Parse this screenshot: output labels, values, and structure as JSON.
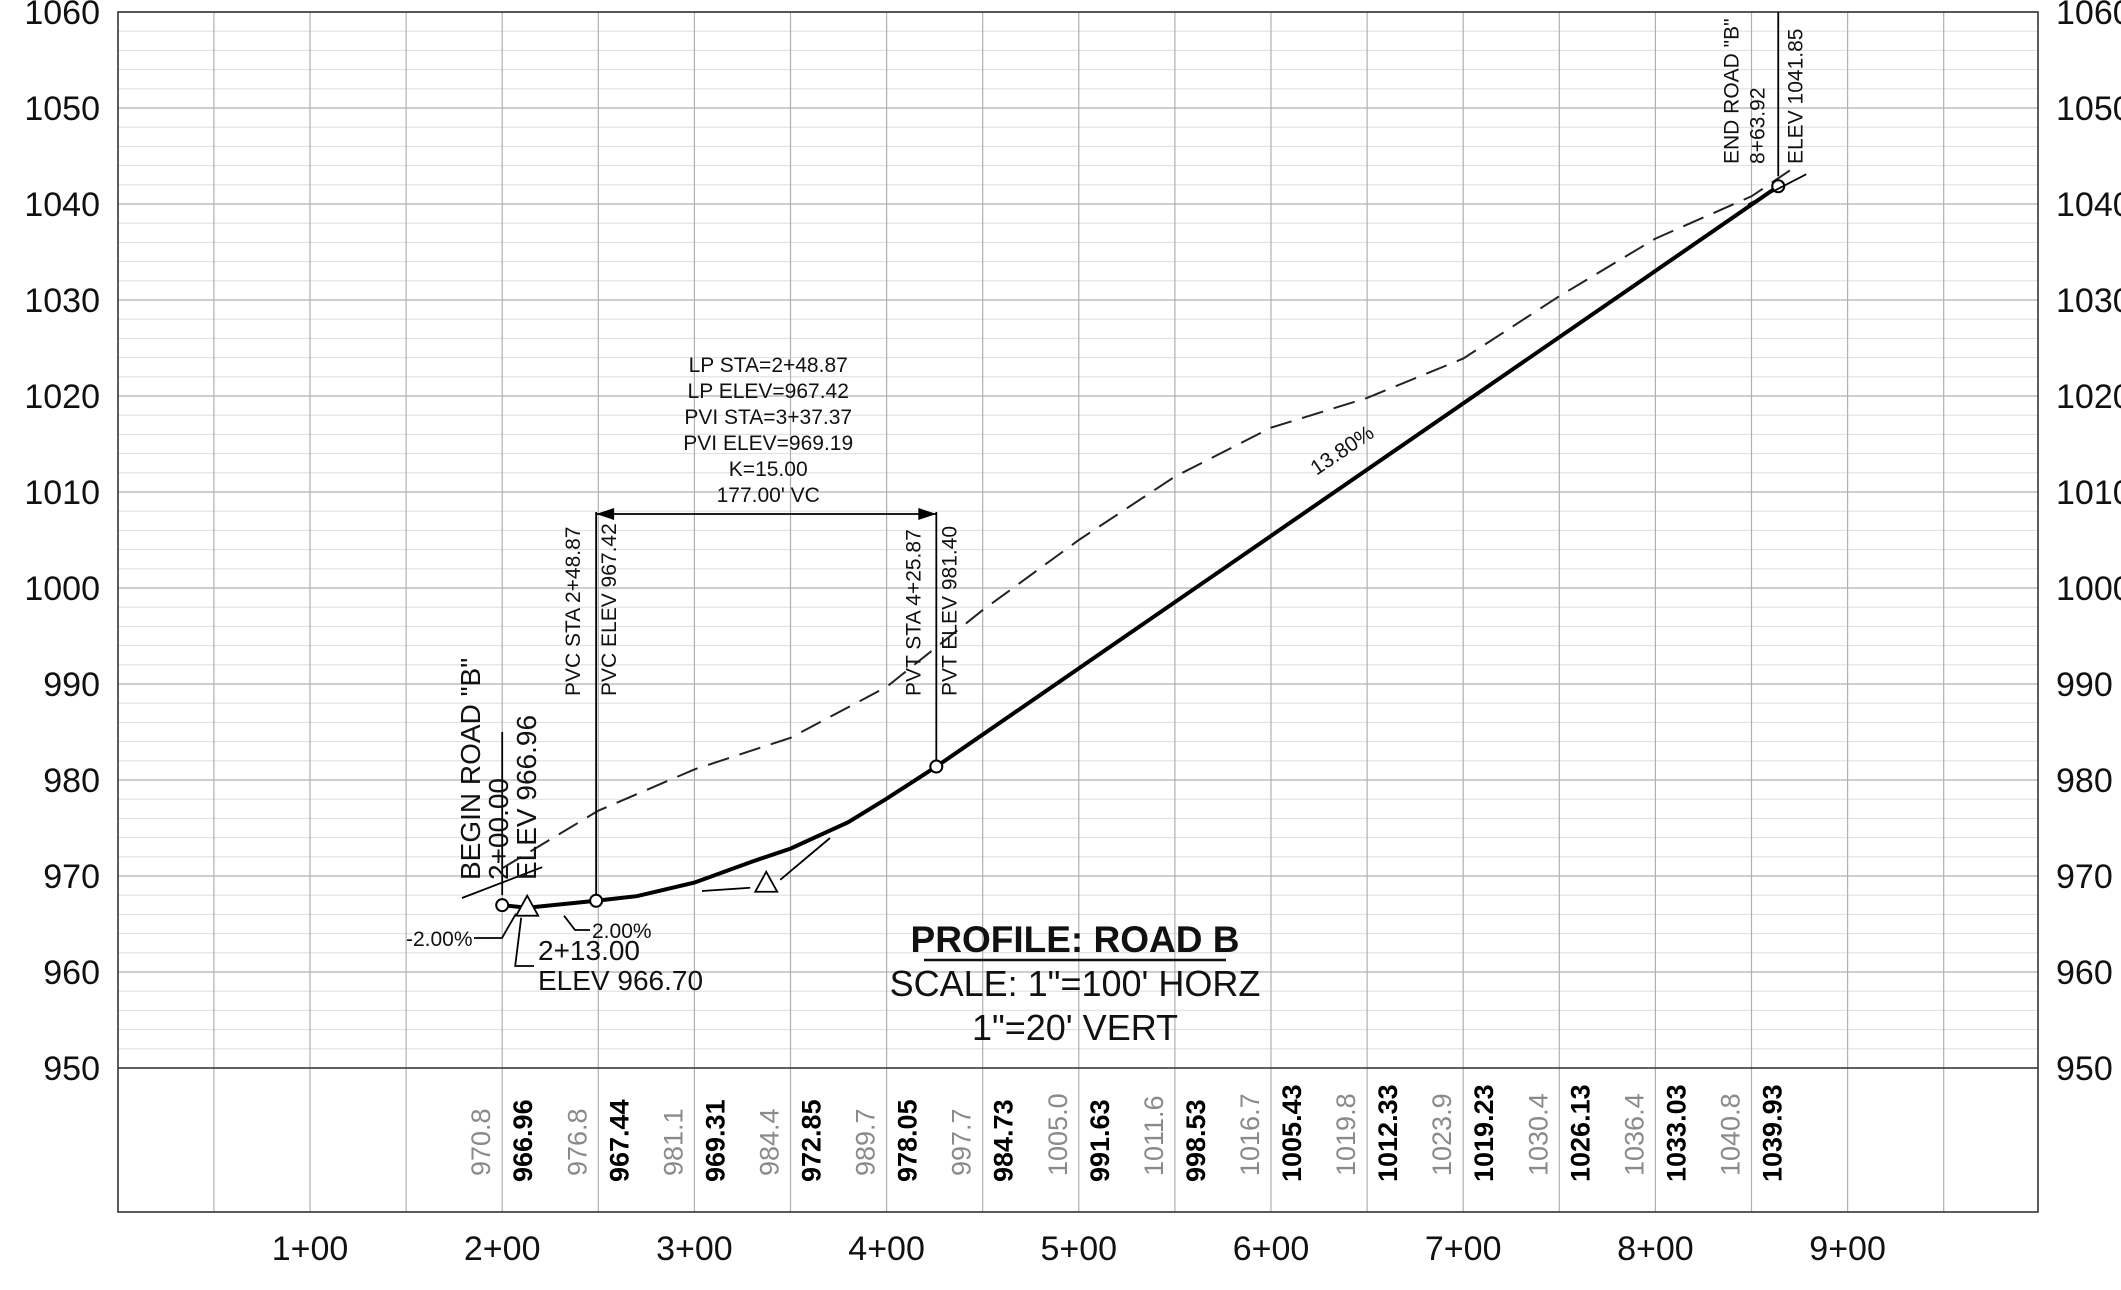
{
  "chart_data": {
    "type": "line",
    "title": "PROFILE: ROAD B",
    "scale": {
      "horizontal": "SCALE: 1\"=100' HORZ",
      "vertical": "1\"=20' VERT"
    },
    "y_ticks": [
      "1060",
      "1050",
      "1040",
      "1030",
      "1020",
      "1010",
      "1000",
      "990",
      "980",
      "970",
      "960",
      "950"
    ],
    "x_ticks": [
      "1+00",
      "2+00",
      "3+00",
      "4+00",
      "5+00",
      "6+00",
      "7+00",
      "8+00",
      "9+00"
    ],
    "ylim": [
      950,
      1060
    ],
    "xlim": [
      0,
      1000
    ],
    "series": [
      {
        "kind": "existing-ground",
        "points": [
          {
            "sta": 200,
            "elev": 970.8
          },
          {
            "sta": 250,
            "elev": 976.8
          },
          {
            "sta": 300,
            "elev": 981.1
          },
          {
            "sta": 350,
            "elev": 984.4
          },
          {
            "sta": 400,
            "elev": 989.7
          },
          {
            "sta": 450,
            "elev": 997.7
          },
          {
            "sta": 500,
            "elev": 1005.0
          },
          {
            "sta": 550,
            "elev": 1011.6
          },
          {
            "sta": 600,
            "elev": 1016.7
          },
          {
            "sta": 650,
            "elev": 1019.8
          },
          {
            "sta": 700,
            "elev": 1023.9
          },
          {
            "sta": 750,
            "elev": 1030.4
          },
          {
            "sta": 800,
            "elev": 1036.4
          },
          {
            "sta": 850,
            "elev": 1040.8
          },
          {
            "sta": 870,
            "elev": 1043.5
          }
        ]
      },
      {
        "kind": "proposed-profile",
        "points": [
          {
            "sta": 200,
            "elev": 966.96
          },
          {
            "sta": 213,
            "elev": 966.7
          },
          {
            "sta": 248.87,
            "elev": 967.42
          },
          {
            "sta": 270,
            "elev": 967.9
          },
          {
            "sta": 300,
            "elev": 969.31
          },
          {
            "sta": 330,
            "elev": 971.5
          },
          {
            "sta": 350,
            "elev": 972.85
          },
          {
            "sta": 380,
            "elev": 975.6
          },
          {
            "sta": 400,
            "elev": 978.05
          },
          {
            "sta": 425.87,
            "elev": 981.4
          },
          {
            "sta": 863.92,
            "elev": 1041.85
          }
        ]
      }
    ],
    "data_rows": [
      {
        "sta": 200,
        "design": "966.96",
        "exist": "970.8"
      },
      {
        "sta": 250,
        "design": "967.44",
        "exist": "976.8"
      },
      {
        "sta": 300,
        "design": "969.31",
        "exist": "981.1"
      },
      {
        "sta": 350,
        "design": "972.85",
        "exist": "984.4"
      },
      {
        "sta": 400,
        "design": "978.05",
        "exist": "989.7"
      },
      {
        "sta": 450,
        "design": "984.73",
        "exist": "997.7"
      },
      {
        "sta": 500,
        "design": "991.63",
        "exist": "1005.0"
      },
      {
        "sta": 550,
        "design": "998.53",
        "exist": "1011.6"
      },
      {
        "sta": 600,
        "design": "1005.43",
        "exist": "1016.7"
      },
      {
        "sta": 650,
        "design": "1012.33",
        "exist": "1019.8"
      },
      {
        "sta": 700,
        "design": "1019.23",
        "exist": "1023.9"
      },
      {
        "sta": 750,
        "design": "1026.13",
        "exist": "1030.4"
      },
      {
        "sta": 800,
        "design": "1033.03",
        "exist": "1036.4"
      },
      {
        "sta": 850,
        "design": "1039.93",
        "exist": "1040.8"
      }
    ],
    "annotations": {
      "begin": {
        "line1": "BEGIN ROAD \"B\"",
        "line2": "2+00.00",
        "line3": "ELEV  966.96",
        "sta": 200,
        "elev": 966.96
      },
      "end": {
        "line1": "END ROAD \"B\"",
        "line2": "8+63.92",
        "line3": "ELEV  1041.85",
        "sta": 863.92,
        "elev": 1041.85
      },
      "pvc": {
        "line1": "PVC STA 2+48.87",
        "line2": "PVC ELEV 967.42",
        "sta": 248.87,
        "elev": 967.42
      },
      "pvt": {
        "line1": "PVT STA 4+25.87",
        "line2": "PVT ELEV 981.40",
        "sta": 425.87,
        "elev": 981.4
      },
      "low_point": {
        "line1": "2+13.00",
        "line2": "ELEV  966.70",
        "sta": 213,
        "elev": 966.7
      },
      "curve": [
        "LP STA=2+48.87",
        "LP ELEV=967.42",
        "PVI STA=3+37.37",
        "PVI ELEV=969.19",
        "K=15.00",
        "177.00' VC"
      ],
      "pvi": {
        "sta": 337.37,
        "elev": 969.19
      },
      "grade_left": "-2.00%",
      "grade_mid": "2.00%",
      "grade_main": "13.80%"
    }
  }
}
